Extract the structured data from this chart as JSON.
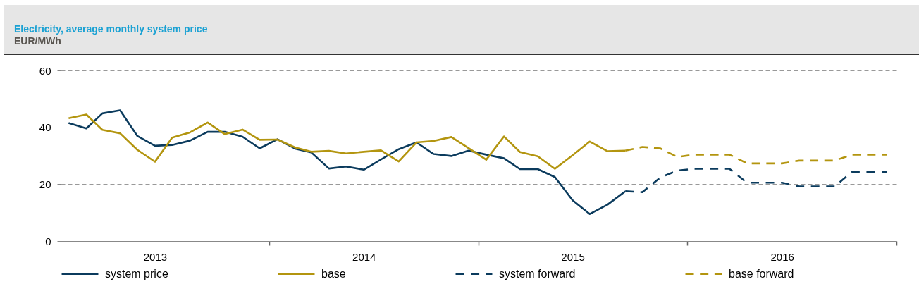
{
  "chart_data": {
    "type": "line",
    "title": "Electricity, average monthly system price",
    "subtitle": "EUR/MWh",
    "x": [
      "2013-01-15",
      "2013-02-15",
      "2013-03-15",
      "2013-04-15",
      "2013-05-15",
      "2013-06-15",
      "2013-07-15",
      "2013-08-15",
      "2013-09-15",
      "2013-10-15",
      "2013-11-15",
      "2013-12-15",
      "2014-01-15",
      "2014-02-15",
      "2014-03-15",
      "2014-04-15",
      "2014-05-15",
      "2014-06-15",
      "2014-07-15",
      "2014-08-15",
      "2014-09-15",
      "2014-10-15",
      "2014-11-15",
      "2014-12-15",
      "2015-01-15",
      "2015-02-15",
      "2015-03-15",
      "2015-04-15",
      "2015-05-15",
      "2015-06-15",
      "2015-07-15",
      "2015-08-15",
      "2015-09-15"
    ],
    "series": [
      {
        "name": "system price",
        "color": "#0b3b5d",
        "line_style": "solid",
        "values": [
          41.5,
          39.6,
          44.9,
          46.0,
          37.0,
          33.5,
          33.8,
          35.3,
          38.4,
          38.4,
          36.7,
          32.6,
          35.8,
          32.5,
          31.2,
          25.5,
          26.2,
          25.1,
          28.7,
          32.3,
          34.7,
          30.6,
          29.9,
          31.8,
          30.4,
          29.1,
          25.3,
          25.3,
          22.5,
          14.3,
          9.5,
          12.8,
          17.5
        ]
      },
      {
        "name": "base",
        "color": "#b3950f",
        "line_style": "solid",
        "values": [
          43.2,
          44.5,
          39.1,
          37.9,
          32.1,
          27.9,
          36.4,
          38.2,
          41.7,
          37.6,
          39.2,
          35.6,
          35.7,
          32.9,
          31.4,
          31.7,
          30.8,
          31.4,
          31.9,
          28.0,
          34.7,
          35.2,
          36.6,
          32.7,
          28.6,
          36.8,
          31.3,
          29.8,
          25.4,
          30.2,
          35.0,
          31.6,
          31.8
        ]
      },
      {
        "name": "system forward",
        "color": "#0b3b5d",
        "line_style": "dashed",
        "x": [
          "2015-09-15",
          "2015-10-15",
          "2015-11-15",
          "2015-12-15",
          "2016-01-15",
          "2016-02-15",
          "2016-03-15",
          "2016-04-15",
          "2016-05-15",
          "2016-06-15",
          "2016-07-15",
          "2016-08-15",
          "2016-09-15",
          "2016-10-15",
          "2016-11-15",
          "2016-12-15"
        ],
        "values": [
          17.5,
          17.2,
          22.3,
          24.8,
          25.4,
          25.4,
          25.4,
          20.5,
          20.5,
          20.5,
          19.2,
          19.2,
          19.2,
          24.3,
          24.3,
          24.3
        ]
      },
      {
        "name": "base forward",
        "color": "#b3950f",
        "line_style": "dashed",
        "x": [
          "2015-09-15",
          "2015-10-15",
          "2015-11-15",
          "2015-12-15",
          "2016-01-15",
          "2016-02-15",
          "2016-03-15",
          "2016-04-15",
          "2016-05-15",
          "2016-06-15",
          "2016-07-15",
          "2016-08-15",
          "2016-09-15",
          "2016-10-15",
          "2016-11-15",
          "2016-12-15"
        ],
        "values": [
          31.8,
          33.1,
          32.6,
          29.6,
          30.4,
          30.4,
          30.4,
          27.3,
          27.3,
          27.3,
          28.3,
          28.3,
          28.3,
          30.4,
          30.4,
          30.4
        ]
      }
    ],
    "xlim": [
      "2013-01-01",
      "2017-01-01"
    ],
    "xticks": [
      {
        "value": "2013-06-15",
        "label": "2013"
      },
      {
        "value": "2014-01-01",
        "label": null
      },
      {
        "value": "2014-06-15",
        "label": "2014"
      },
      {
        "value": "2015-01-01",
        "label": null
      },
      {
        "value": "2015-06-15",
        "label": "2015"
      },
      {
        "value": "2016-01-01",
        "label": null
      },
      {
        "value": "2016-06-15",
        "label": "2016"
      },
      {
        "value": "2017-01-01",
        "label": null
      }
    ],
    "ylim": [
      0,
      60
    ],
    "yticks": [
      0,
      20,
      40,
      60
    ],
    "grid": "y",
    "legend": "bottom"
  }
}
